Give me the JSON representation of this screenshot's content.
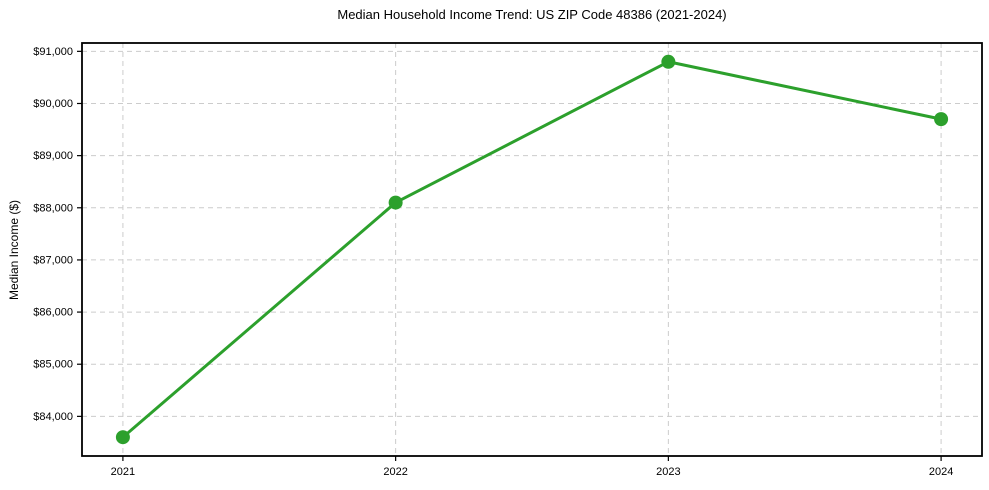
{
  "page": {
    "background": "#ffffff"
  },
  "chart_data": {
    "type": "line",
    "title": "Median Household Income Trend: US ZIP Code 48386 (2021-2024)",
    "xlabel": "",
    "ylabel": "Median Income ($)",
    "x": [
      2021,
      2022,
      2023,
      2024
    ],
    "series": [
      {
        "name": "Median Household Income",
        "values": [
          83600,
          88100,
          90800,
          89700
        ],
        "color": "#2ca02c"
      }
    ],
    "xlim": [
      2020.85,
      2024.15
    ],
    "ylim": [
      83240,
      91160
    ],
    "xticks": {
      "values": [
        2021,
        2022,
        2023,
        2024
      ],
      "labels": [
        "2021",
        "2022",
        "2023",
        "2024"
      ]
    },
    "yticks": {
      "values": [
        84000,
        85000,
        86000,
        87000,
        88000,
        89000,
        90000,
        91000
      ],
      "labels": [
        "$84,000",
        "$85,000",
        "$86,000",
        "$87,000",
        "$88,000",
        "$89,000",
        "$90,000",
        "$91,000"
      ]
    },
    "grid": true,
    "grid_style": "dashed",
    "grid_color": "#cccccc",
    "axis_color": "#000000",
    "text_color": "#000000",
    "legend": "none",
    "marker": "circle",
    "marker_size": 7,
    "line_width": 3
  }
}
